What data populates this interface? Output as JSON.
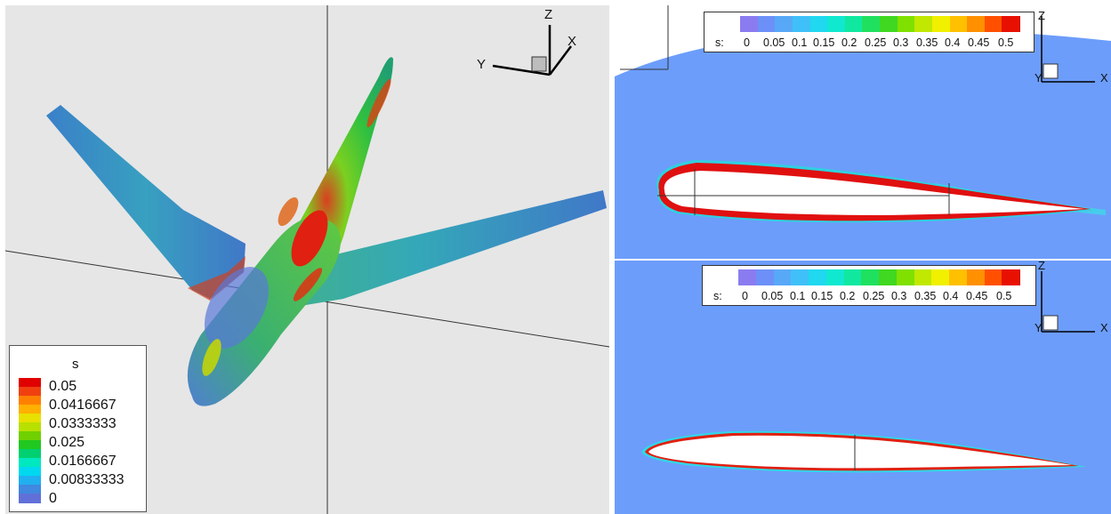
{
  "left_panel": {
    "legend": {
      "title": "s",
      "labels": [
        "0.05",
        "0.0416667",
        "0.0333333",
        "0.025",
        "0.0166667",
        "0.00833333",
        "0"
      ],
      "colors": [
        "#e00000",
        "#f04010",
        "#ff8000",
        "#ffb000",
        "#e8e000",
        "#b8e000",
        "#70d000",
        "#20c820",
        "#00d070",
        "#00e8c0",
        "#00d8f0",
        "#20b0f0",
        "#4088e0",
        "#6070d8"
      ]
    },
    "axes": {
      "x": "X",
      "y": "Y",
      "z": "Z"
    }
  },
  "right_top": {
    "colorbar": {
      "prefix": "s:",
      "labels": [
        "0",
        "0.05",
        "0.1",
        "0.15",
        "0.2",
        "0.25",
        "0.3",
        "0.35",
        "0.4",
        "0.45",
        "0.5"
      ],
      "colors": [
        "#8a7cf0",
        "#6c90f8",
        "#58a8f8",
        "#40c0f8",
        "#20d8f0",
        "#10e8d0",
        "#10e8a0",
        "#20e060",
        "#40d820",
        "#80e000",
        "#c0e800",
        "#f0f000",
        "#ffc000",
        "#ff9000",
        "#ff5000",
        "#e81000"
      ]
    },
    "axes": {
      "x": "X",
      "y": "Y",
      "z": "Z"
    }
  },
  "right_bottom": {
    "colorbar": {
      "prefix": "s:",
      "labels": [
        "0",
        "0.05",
        "0.1",
        "0.15",
        "0.2",
        "0.25",
        "0.3",
        "0.35",
        "0.4",
        "0.45",
        "0.5"
      ]
    },
    "axes": {
      "x": "X",
      "y": "Y",
      "z": "Z"
    }
  }
}
